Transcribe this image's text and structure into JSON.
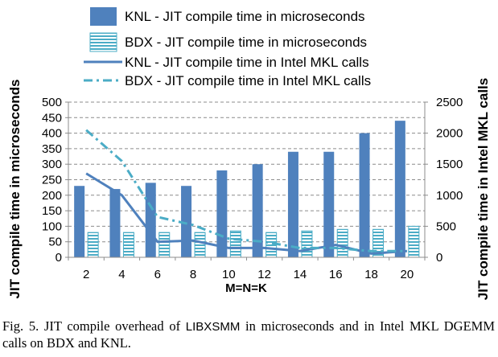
{
  "chart_data": {
    "type": "bar",
    "title": "",
    "xlabel": "M=N=K",
    "ylabel": "JIT compile time in microseconds",
    "y2label": "JIT compile time in Intel MKL calls",
    "categories": [
      "2",
      "4",
      "6",
      "8",
      "10",
      "12",
      "14",
      "16",
      "18",
      "20"
    ],
    "ylim": [
      0,
      500
    ],
    "y2lim": [
      0,
      2500
    ],
    "yticks": [
      "0",
      "50",
      "100",
      "150",
      "200",
      "250",
      "300",
      "350",
      "400",
      "450",
      "500"
    ],
    "y2ticks": [
      "0",
      "500",
      "1000",
      "1500",
      "2000",
      "2500"
    ],
    "grid": true,
    "legend_position": "top",
    "series": [
      {
        "name": "KNL - JIT compile time in microseconds",
        "kind": "bar",
        "axis": "left",
        "color": "#4f81bd",
        "values": [
          230,
          220,
          240,
          230,
          280,
          300,
          340,
          340,
          400,
          440
        ]
      },
      {
        "name": "BDX - JIT compile time in microseconds",
        "kind": "bar-striped",
        "axis": "left",
        "color": "#4bacc6",
        "values": [
          80,
          80,
          80,
          80,
          85,
          80,
          85,
          90,
          90,
          100
        ]
      },
      {
        "name": "KNL - JIT compile time in Intel MKL calls",
        "kind": "line",
        "axis": "right",
        "color": "#4f81bd",
        "values": [
          1350,
          1000,
          250,
          270,
          150,
          150,
          100,
          200,
          60,
          100
        ]
      },
      {
        "name": "BDX - JIT compile time in Intel MKL calls",
        "kind": "line-dashdot",
        "axis": "right",
        "color": "#4bacc6",
        "values": [
          2050,
          1550,
          650,
          520,
          300,
          250,
          150,
          150,
          100,
          100
        ]
      }
    ]
  },
  "caption": {
    "prefix": "Fig. 5.  JIT compile overhead of ",
    "library": "LIBXSMM",
    "suffix": " in microseconds and in Intel MKL DGEMM calls on BDX and KNL."
  }
}
